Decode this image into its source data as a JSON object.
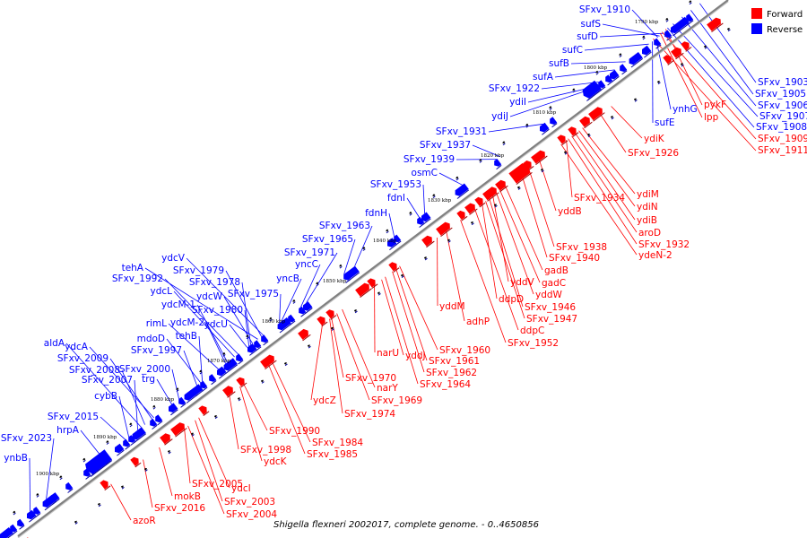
{
  "caption": "Shigella flexneri 2002017, complete genome. - 0..4650856",
  "legend": [
    {
      "label": "Forward",
      "color": "#ff0000"
    },
    {
      "label": "Reverse",
      "color": "#0000ff"
    }
  ],
  "colors": {
    "forward": "#ff0000",
    "reverse": "#0000ff",
    "backbone": "#808080"
  },
  "kbp_marks": [
    "1900 kbp",
    "1890 kbp",
    "1880 kbp",
    "1870 kbp",
    "1860 kbp",
    "1850 kbp",
    "1840 kbp",
    "1830 kbp",
    "1820 kbp",
    "1810 kbp",
    "1800 kbp",
    "1790 kbp"
  ],
  "reverse_labels": [
    "SFxv_1910",
    "sufS",
    "sufD",
    "sufC",
    "sufB",
    "sufA",
    "SFxv_1922",
    "ydiI",
    "ydiJ",
    "SFxv_1931",
    "SFxv_1937",
    "SFxv_1939",
    "osmC",
    "SFxv_1953",
    "fdnI",
    "fdnH",
    "SFxv_1963",
    "SFxv_1965",
    "SFxv_1971",
    "yncC",
    "yncB",
    "ydcV",
    "SFxv_1979",
    "tehA",
    "SFxv_1978",
    "SFxv_1992",
    "SFxv_1975",
    "ydcL",
    "ydcW",
    "ydcM-1",
    "SFxv_1980",
    "rimL",
    "ydcM-2",
    "ydcU",
    "mdoD",
    "tehB",
    "SFxv_1997",
    "aldA",
    "ydcA",
    "SFxv_2009",
    "SFxv_2008",
    "SFxv_2000",
    "SFxv_2007",
    "trg",
    "cybB",
    "SFxv_2015",
    "hrpA",
    "SFxv_2023",
    "ynbB",
    "ynhG",
    "sufE"
  ],
  "forward_right_labels": [
    "SFxv_1903",
    "SFxv_1905",
    "SFxv_1906",
    "SFxv_1907",
    "SFxv_1908",
    "SFxv_1909",
    "SFxv_1911",
    "pykF",
    "lpp"
  ],
  "forward_labels": [
    "ydiK",
    "SFxv_1926",
    "ydiM",
    "SFxv_1934",
    "ydiN",
    "yddB",
    "ydiB",
    "aroD",
    "SFxv_1932",
    "ydeN-2",
    "SFxv_1938",
    "SFxv_1940",
    "gadB",
    "gadC",
    "yddV",
    "yddW",
    "ddpD",
    "SFxv_1946",
    "SFxv_1947",
    "ddpC",
    "yddM",
    "adhP",
    "SFxv_1952",
    "SFxv_1960",
    "narU",
    "yddJ",
    "SFxv_1961",
    "SFxv_1962",
    "SFxv_1964",
    "SFxv_1970",
    "narY",
    "SFxv_1969",
    "ydcZ",
    "SFxv_1974",
    "SFxv_1990",
    "SFxv_1984",
    "SFxv_1985",
    "SFxv_1998",
    "ydcK",
    "SFxv_2005",
    "ydcI",
    "SFxv_2003",
    "SFxv_2004",
    "SFxv_2016",
    "mokB",
    "azoR"
  ]
}
